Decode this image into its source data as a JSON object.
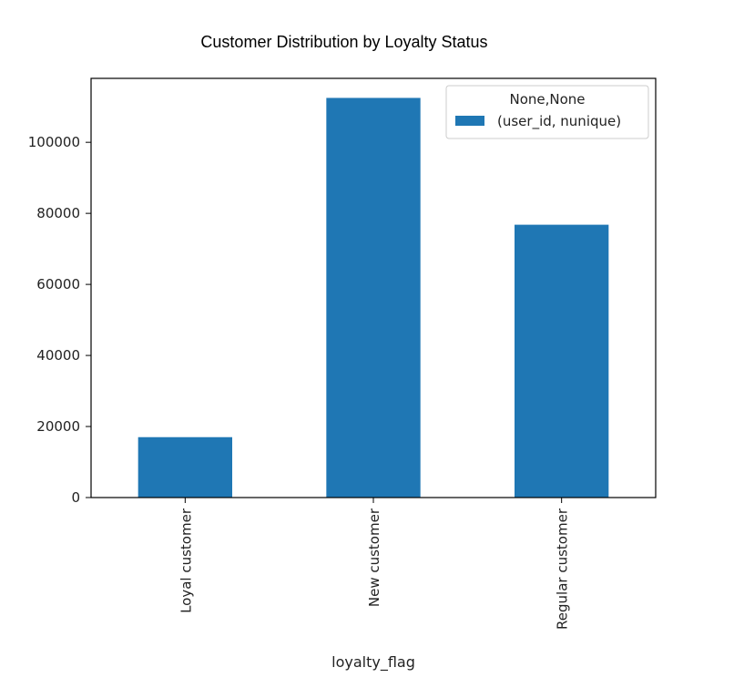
{
  "chart_data": {
    "type": "bar",
    "title": "Customer Distribution by Loyalty Status",
    "xlabel": "loyalty_flag",
    "ylabel": "",
    "categories": [
      "Loyal customer",
      "New customer",
      "Regular customer"
    ],
    "series": [
      {
        "name": "(user_id, nunique)",
        "values": [
          17000,
          112500,
          76800
        ],
        "color": "#1f77b4"
      }
    ],
    "legend_title": "None,None",
    "legend_position": "top-right",
    "ylim": [
      0,
      118000
    ],
    "yticks": [
      0,
      20000,
      40000,
      60000,
      80000,
      100000
    ],
    "ytick_labels": [
      "0",
      "20000",
      "40000",
      "60000",
      "80000",
      "100000"
    ],
    "grid": false
  }
}
